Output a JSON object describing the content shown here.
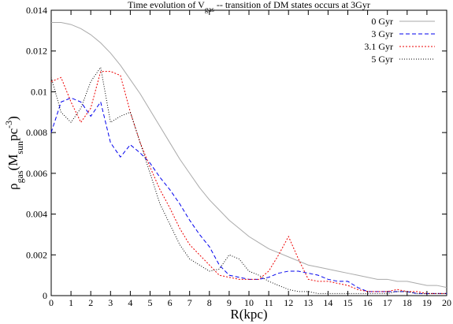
{
  "chart_data": {
    "type": "line",
    "title_parts": [
      {
        "text": "Time evolution of V"
      },
      {
        "text": "gas",
        "sub": true
      },
      {
        "text": " -- transition of DM states occurs at 3Gyr"
      }
    ],
    "xlabel_parts": [
      {
        "text": "R(kpc)"
      }
    ],
    "ylabel_parts": [
      {
        "text": "ρ"
      },
      {
        "text": "gas",
        "sub": true
      },
      {
        "text": "(M"
      },
      {
        "text": "sun",
        "sub": true
      },
      {
        "text": "pc"
      },
      {
        "text": "-3",
        "sup": true
      },
      {
        "text": ")"
      }
    ],
    "xlim": [
      0,
      20
    ],
    "ylim": [
      0,
      0.014
    ],
    "xticks": [
      0,
      1,
      2,
      3,
      4,
      5,
      6,
      7,
      8,
      9,
      10,
      11,
      12,
      13,
      14,
      15,
      16,
      17,
      18,
      19,
      20
    ],
    "yticks": [
      0,
      0.002,
      0.004,
      0.006,
      0.008,
      0.01,
      0.012,
      0.014
    ],
    "legend": "upper right",
    "x": [
      0,
      0.5,
      1,
      1.5,
      2,
      2.5,
      3,
      3.5,
      4,
      4.5,
      5,
      5.5,
      6,
      6.5,
      7,
      7.5,
      8,
      8.5,
      9,
      9.5,
      10,
      10.5,
      11,
      11.5,
      12,
      12.5,
      13,
      13.5,
      14,
      14.5,
      15,
      15.5,
      16,
      16.5,
      17,
      17.5,
      18,
      18.5,
      19,
      19.5,
      20
    ],
    "series": [
      {
        "name": "0 Gyr",
        "color": "#aaaaaa",
        "dash": "none",
        "values": [
          0.0134,
          0.0134,
          0.0133,
          0.0131,
          0.0128,
          0.0124,
          0.0119,
          0.0113,
          0.0106,
          0.0099,
          0.0091,
          0.0083,
          0.0075,
          0.0067,
          0.006,
          0.0053,
          0.0047,
          0.0042,
          0.0037,
          0.0033,
          0.0029,
          0.0026,
          0.0023,
          0.0021,
          0.0019,
          0.0017,
          0.0015,
          0.0014,
          0.0013,
          0.0012,
          0.0011,
          0.001,
          0.0009,
          0.0008,
          0.0008,
          0.0007,
          0.0007,
          0.0006,
          0.0005,
          0.0005,
          0.0004
        ]
      },
      {
        "name": "3 Gyr",
        "color": "#0000ee",
        "dash": "5,3",
        "values": [
          0.008,
          0.0095,
          0.0097,
          0.0095,
          0.0088,
          0.0095,
          0.0075,
          0.0068,
          0.0074,
          0.007,
          0.0065,
          0.0058,
          0.0052,
          0.0045,
          0.0037,
          0.003,
          0.0024,
          0.0015,
          0.001,
          0.0009,
          0.0008,
          0.0008,
          0.0009,
          0.0011,
          0.0012,
          0.0012,
          0.0011,
          0.001,
          0.0008,
          0.0007,
          0.0007,
          0.0004,
          0.0002,
          0.0002,
          0.0002,
          0.0002,
          0.0002,
          0.0001,
          0.0001,
          0.0001,
          0.0001
        ]
      },
      {
        "name": "3.1 Gyr",
        "color": "#ee0000",
        "dash": "2,2",
        "values": [
          0.0105,
          0.0107,
          0.0095,
          0.0085,
          0.0092,
          0.011,
          0.011,
          0.0108,
          0.009,
          0.0075,
          0.0063,
          0.0052,
          0.0043,
          0.0033,
          0.0025,
          0.002,
          0.0015,
          0.001,
          0.0009,
          0.0008,
          0.0008,
          0.0008,
          0.0012,
          0.002,
          0.0029,
          0.0018,
          0.0008,
          0.0007,
          0.0007,
          0.0006,
          0.0005,
          0.0003,
          0.0002,
          0.0002,
          0.0002,
          0.0003,
          0.0002,
          0.0002,
          0.0001,
          0.0001,
          0.0001
        ]
      },
      {
        "name": "5 Gyr",
        "color": "#000000",
        "dash": "1,2",
        "values": [
          0.0107,
          0.009,
          0.0085,
          0.0092,
          0.0105,
          0.0112,
          0.0085,
          0.0088,
          0.009,
          0.0075,
          0.006,
          0.0045,
          0.0035,
          0.0025,
          0.0018,
          0.0015,
          0.0012,
          0.0013,
          0.002,
          0.0018,
          0.0012,
          0.001,
          0.0007,
          0.0005,
          0.0003,
          0.0002,
          0.0002,
          0.0001,
          0.0001,
          0.0001,
          0.0001,
          0.0001,
          0.0001,
          0.0001,
          0.0001,
          0.0002,
          0.0002,
          0.0001,
          0.0001,
          0.0001,
          0.0001
        ]
      }
    ]
  }
}
